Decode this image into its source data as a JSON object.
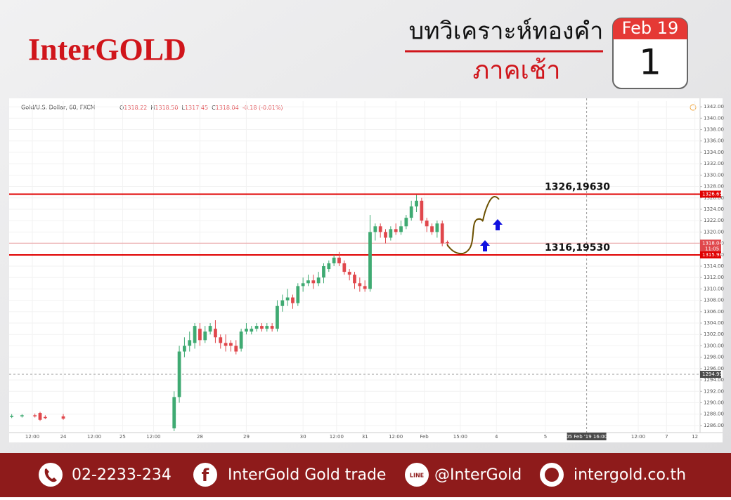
{
  "header": {
    "brand": "InterGOLD",
    "title": "บทวิเคราะห์ทองคำ",
    "subtitle": "ภาคเช้า",
    "calendar_month": "Feb 19",
    "calendar_day": "1"
  },
  "chart_data": {
    "type": "candlestick",
    "symbol": "Gold/U.S. Dollar, 60, FXCM",
    "ohlc_legend": [
      {
        "key": "O",
        "value": "1318.22"
      },
      {
        "key": "H",
        "value": "1318.50"
      },
      {
        "key": "L",
        "value": "1317.45"
      },
      {
        "key": "C",
        "value": "1318.04"
      }
    ],
    "change": "-0.18 (-0.01%)",
    "x": [
      1,
      5,
      10,
      12,
      14,
      21,
      64,
      66,
      68,
      70,
      72,
      74,
      76,
      78,
      80,
      82,
      84,
      86,
      88,
      90,
      92,
      94,
      96,
      98,
      100,
      102,
      104,
      106,
      108,
      110,
      112,
      114,
      116,
      118,
      120,
      122,
      124,
      126,
      128,
      130,
      132,
      134,
      136,
      138,
      140,
      142,
      144,
      146,
      148,
      150,
      152,
      154,
      156,
      158,
      160,
      162,
      164,
      166,
      168,
      170
    ],
    "open": [
      1287.5,
      1287.6,
      1287.8,
      1288.2,
      1287.5,
      1287.6,
      1285.5,
      1291,
      1299,
      1300,
      1300.5,
      1303,
      1301,
      1302.5,
      1303,
      1301.5,
      1300.5,
      1300.5,
      1300,
      1299.5,
      1302.5,
      1302.5,
      1303,
      1303.5,
      1303,
      1303.5,
      1303,
      1307,
      1308,
      1308.5,
      1307.5,
      1310.5,
      1311,
      1311.5,
      1311,
      1312,
      1313.5,
      1314.5,
      1315.5,
      1314.5,
      1313,
      1312.5,
      1311,
      1310.5,
      1310,
      1320,
      1321,
      1320,
      1319,
      1320.5,
      1320,
      1321,
      1322.5,
      1324.5,
      1325.5,
      1322,
      1321,
      1320,
      1321.5,
      1318.22
    ],
    "high": [
      1288,
      1288,
      1288.1,
      1288.4,
      1287.8,
      1288,
      1292,
      1300,
      1301.5,
      1302.5,
      1304,
      1304,
      1303.5,
      1304,
      1304.5,
      1302,
      1302,
      1301,
      1301,
      1303,
      1304,
      1303.5,
      1304,
      1304,
      1304,
      1304,
      1308,
      1309,
      1310,
      1309,
      1311,
      1312,
      1312.5,
      1312.5,
      1313,
      1314.5,
      1315,
      1316,
      1316.5,
      1315,
      1313.5,
      1313,
      1312,
      1311.5,
      1323,
      1321.5,
      1321.5,
      1320.5,
      1321,
      1321.5,
      1322,
      1323,
      1325.5,
      1326.5,
      1326,
      1322.5,
      1321.5,
      1322,
      1322,
      1318.5
    ],
    "low": [
      1287.3,
      1287.4,
      1287.4,
      1286.8,
      1287.1,
      1287,
      1285,
      1290,
      1298,
      1299,
      1299.5,
      1300,
      1300.5,
      1302,
      1300.5,
      1299.5,
      1299,
      1299,
      1298.5,
      1299,
      1302,
      1302,
      1302.5,
      1302.5,
      1302.5,
      1302.5,
      1302.5,
      1306,
      1307,
      1306.5,
      1307,
      1309.5,
      1310.5,
      1310,
      1310.5,
      1311,
      1313,
      1314,
      1314,
      1312.5,
      1311.5,
      1310,
      1309.5,
      1309.5,
      1309.5,
      1318.5,
      1319,
      1318,
      1318.5,
      1319.5,
      1319.5,
      1320.5,
      1322,
      1323.5,
      1321.5,
      1320,
      1319.5,
      1319,
      1317.5,
      1317.45
    ],
    "close": [
      1287.7,
      1287.8,
      1287.6,
      1287,
      1287.3,
      1287.2,
      1291,
      1299,
      1300,
      1301,
      1303.5,
      1301,
      1302.5,
      1303.5,
      1301.5,
      1300.5,
      1300,
      1300,
      1299,
      1302.5,
      1303,
      1303,
      1303.5,
      1303,
      1303.5,
      1303,
      1307,
      1308,
      1308.5,
      1307.5,
      1310.5,
      1311,
      1311.5,
      1311,
      1312,
      1314,
      1314.5,
      1315.5,
      1314.5,
      1313,
      1312.5,
      1311,
      1310.5,
      1310,
      1320,
      1321,
      1320,
      1319,
      1320.5,
      1320,
      1321,
      1322.5,
      1324.5,
      1325.5,
      1322,
      1321,
      1320,
      1321.5,
      1318,
      1318.04
    ],
    "up_color": "#3faa72",
    "down_color": "#e0474c",
    "xlim": [
      0,
      268
    ],
    "xticks": [
      {
        "value": 9,
        "label": "12:00"
      },
      {
        "value": 21,
        "label": "24"
      },
      {
        "value": 33,
        "label": "12:00"
      },
      {
        "value": 44,
        "label": "25"
      },
      {
        "value": 56,
        "label": "12:00"
      },
      {
        "value": 74,
        "label": "28"
      },
      {
        "value": 92,
        "label": "29"
      },
      {
        "value": 114,
        "label": "30"
      },
      {
        "value": 127,
        "label": "12:00"
      },
      {
        "value": 138,
        "label": "31"
      },
      {
        "value": 150,
        "label": "12:00"
      },
      {
        "value": 161,
        "label": "Feb"
      },
      {
        "value": 175,
        "label": "15:00"
      },
      {
        "value": 189,
        "label": "4"
      },
      {
        "value": 208,
        "label": "5"
      },
      {
        "value": 244,
        "label": "12:00"
      },
      {
        "value": 255,
        "label": "7"
      },
      {
        "value": 266,
        "label": "12"
      }
    ],
    "ylim": [
      1285,
      1343
    ],
    "yticks": [
      {
        "value": 1286,
        "label": "1286.00"
      },
      {
        "value": 1288,
        "label": "1288.00"
      },
      {
        "value": 1290,
        "label": "1290.00"
      },
      {
        "value": 1292,
        "label": "1292.00"
      },
      {
        "value": 1294,
        "label": "1294.00"
      },
      {
        "value": 1296,
        "label": "1296.00"
      },
      {
        "value": 1298,
        "label": "1298.00"
      },
      {
        "value": 1300,
        "label": "1300.00"
      },
      {
        "value": 1302,
        "label": "1302.00"
      },
      {
        "value": 1304,
        "label": "1304.00"
      },
      {
        "value": 1306,
        "label": "1306.00"
      },
      {
        "value": 1308,
        "label": "1308.00"
      },
      {
        "value": 1310,
        "label": "1310.00"
      },
      {
        "value": 1312,
        "label": "1312.00"
      },
      {
        "value": 1314,
        "label": "1314.00"
      },
      {
        "value": 1316,
        "label": "1316.00"
      },
      {
        "value": 1318,
        "label": "1318.00"
      },
      {
        "value": 1320,
        "label": "1320.00"
      },
      {
        "value": 1322,
        "label": "1322.00"
      },
      {
        "value": 1324,
        "label": "1324.00"
      },
      {
        "value": 1326,
        "label": "1326.00"
      },
      {
        "value": 1328,
        "label": "1328.00"
      },
      {
        "value": 1330,
        "label": "1330.00"
      },
      {
        "value": 1332,
        "label": "1332.00"
      },
      {
        "value": 1334,
        "label": "1334.00"
      },
      {
        "value": 1336,
        "label": "1336.00"
      },
      {
        "value": 1338,
        "label": "1338.00"
      },
      {
        "value": 1340,
        "label": "1340.00"
      },
      {
        "value": 1342,
        "label": "1342.00"
      }
    ],
    "grid": true,
    "levels": [
      {
        "value": 1326.65,
        "note": "1326,19630",
        "color": "#e00000"
      },
      {
        "value": 1315.98,
        "note": "1316,19530",
        "color": "#e00000"
      }
    ],
    "last_price": {
      "value": 1318.04,
      "countdown": "11:05",
      "color": "#e0474c"
    },
    "crosshair": {
      "x": 224,
      "y": 1294.99,
      "x_label": "05 Feb '19  16:00"
    }
  },
  "footer": {
    "phone": "02-2233-234",
    "facebook": "InterGold Gold trade",
    "line": "@InterGold",
    "website": "intergold.co.th"
  }
}
